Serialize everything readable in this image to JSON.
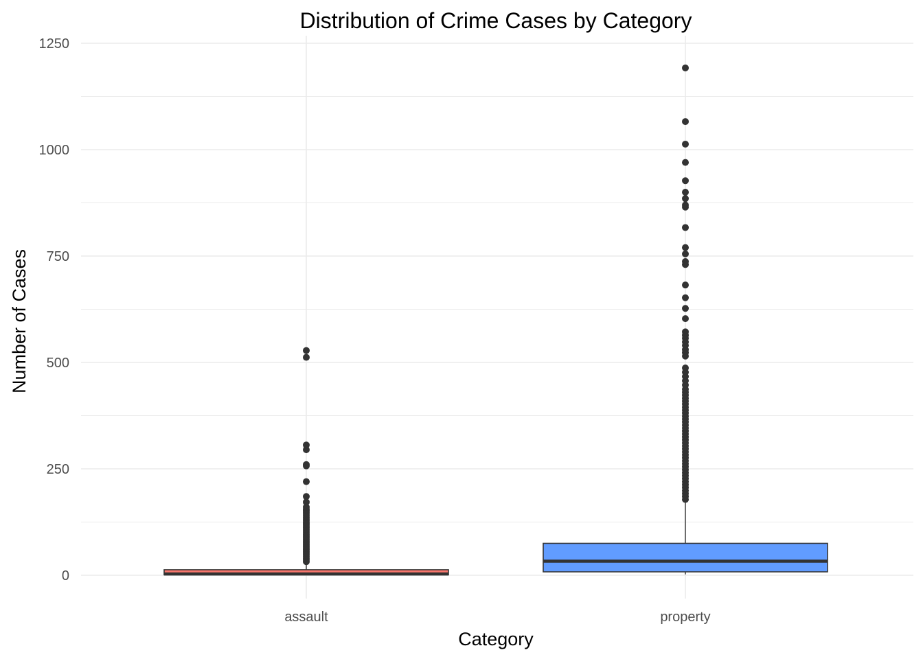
{
  "chart_data": {
    "type": "boxplot",
    "title": "Distribution of Crime Cases by Category",
    "xlabel": "Category",
    "ylabel": "Number of Cases",
    "ylim": [
      -55,
      1250
    ],
    "yticks": [
      0,
      250,
      500,
      750,
      1000,
      1250
    ],
    "y_minor_ticks": [
      125,
      375,
      625,
      875,
      1125
    ],
    "grid": true,
    "legend": "none",
    "categories": [
      "assault",
      "property"
    ],
    "boxes": [
      {
        "category": "assault",
        "color": "#F8766D",
        "min": 0,
        "q1": 1,
        "median": 3,
        "q3": 13,
        "max": 30,
        "outliers": [
          32,
          36,
          40,
          44,
          48,
          52,
          56,
          60,
          64,
          68,
          72,
          76,
          80,
          84,
          88,
          92,
          96,
          100,
          104,
          108,
          112,
          116,
          120,
          124,
          128,
          132,
          136,
          140,
          144,
          148,
          152,
          155,
          160,
          172,
          185,
          220,
          257,
          260,
          295,
          306,
          512,
          528
        ]
      },
      {
        "category": "property",
        "color": "#619CFF",
        "min": 2,
        "q1": 8,
        "median": 33,
        "q3": 75,
        "max": 175,
        "outliers": [
          178,
          185,
          192,
          199,
          206,
          213,
          220,
          227,
          234,
          241,
          248,
          255,
          262,
          269,
          276,
          283,
          290,
          297,
          304,
          311,
          318,
          325,
          332,
          339,
          346,
          353,
          360,
          367,
          374,
          381,
          388,
          395,
          402,
          409,
          416,
          423,
          430,
          437,
          447,
          457,
          467,
          477,
          487,
          515,
          523,
          530,
          540,
          548,
          557,
          564,
          572,
          603,
          627,
          652,
          682,
          730,
          737,
          755,
          770,
          817,
          865,
          870,
          885,
          900,
          927,
          970,
          1013,
          1066,
          1192
        ]
      }
    ]
  }
}
